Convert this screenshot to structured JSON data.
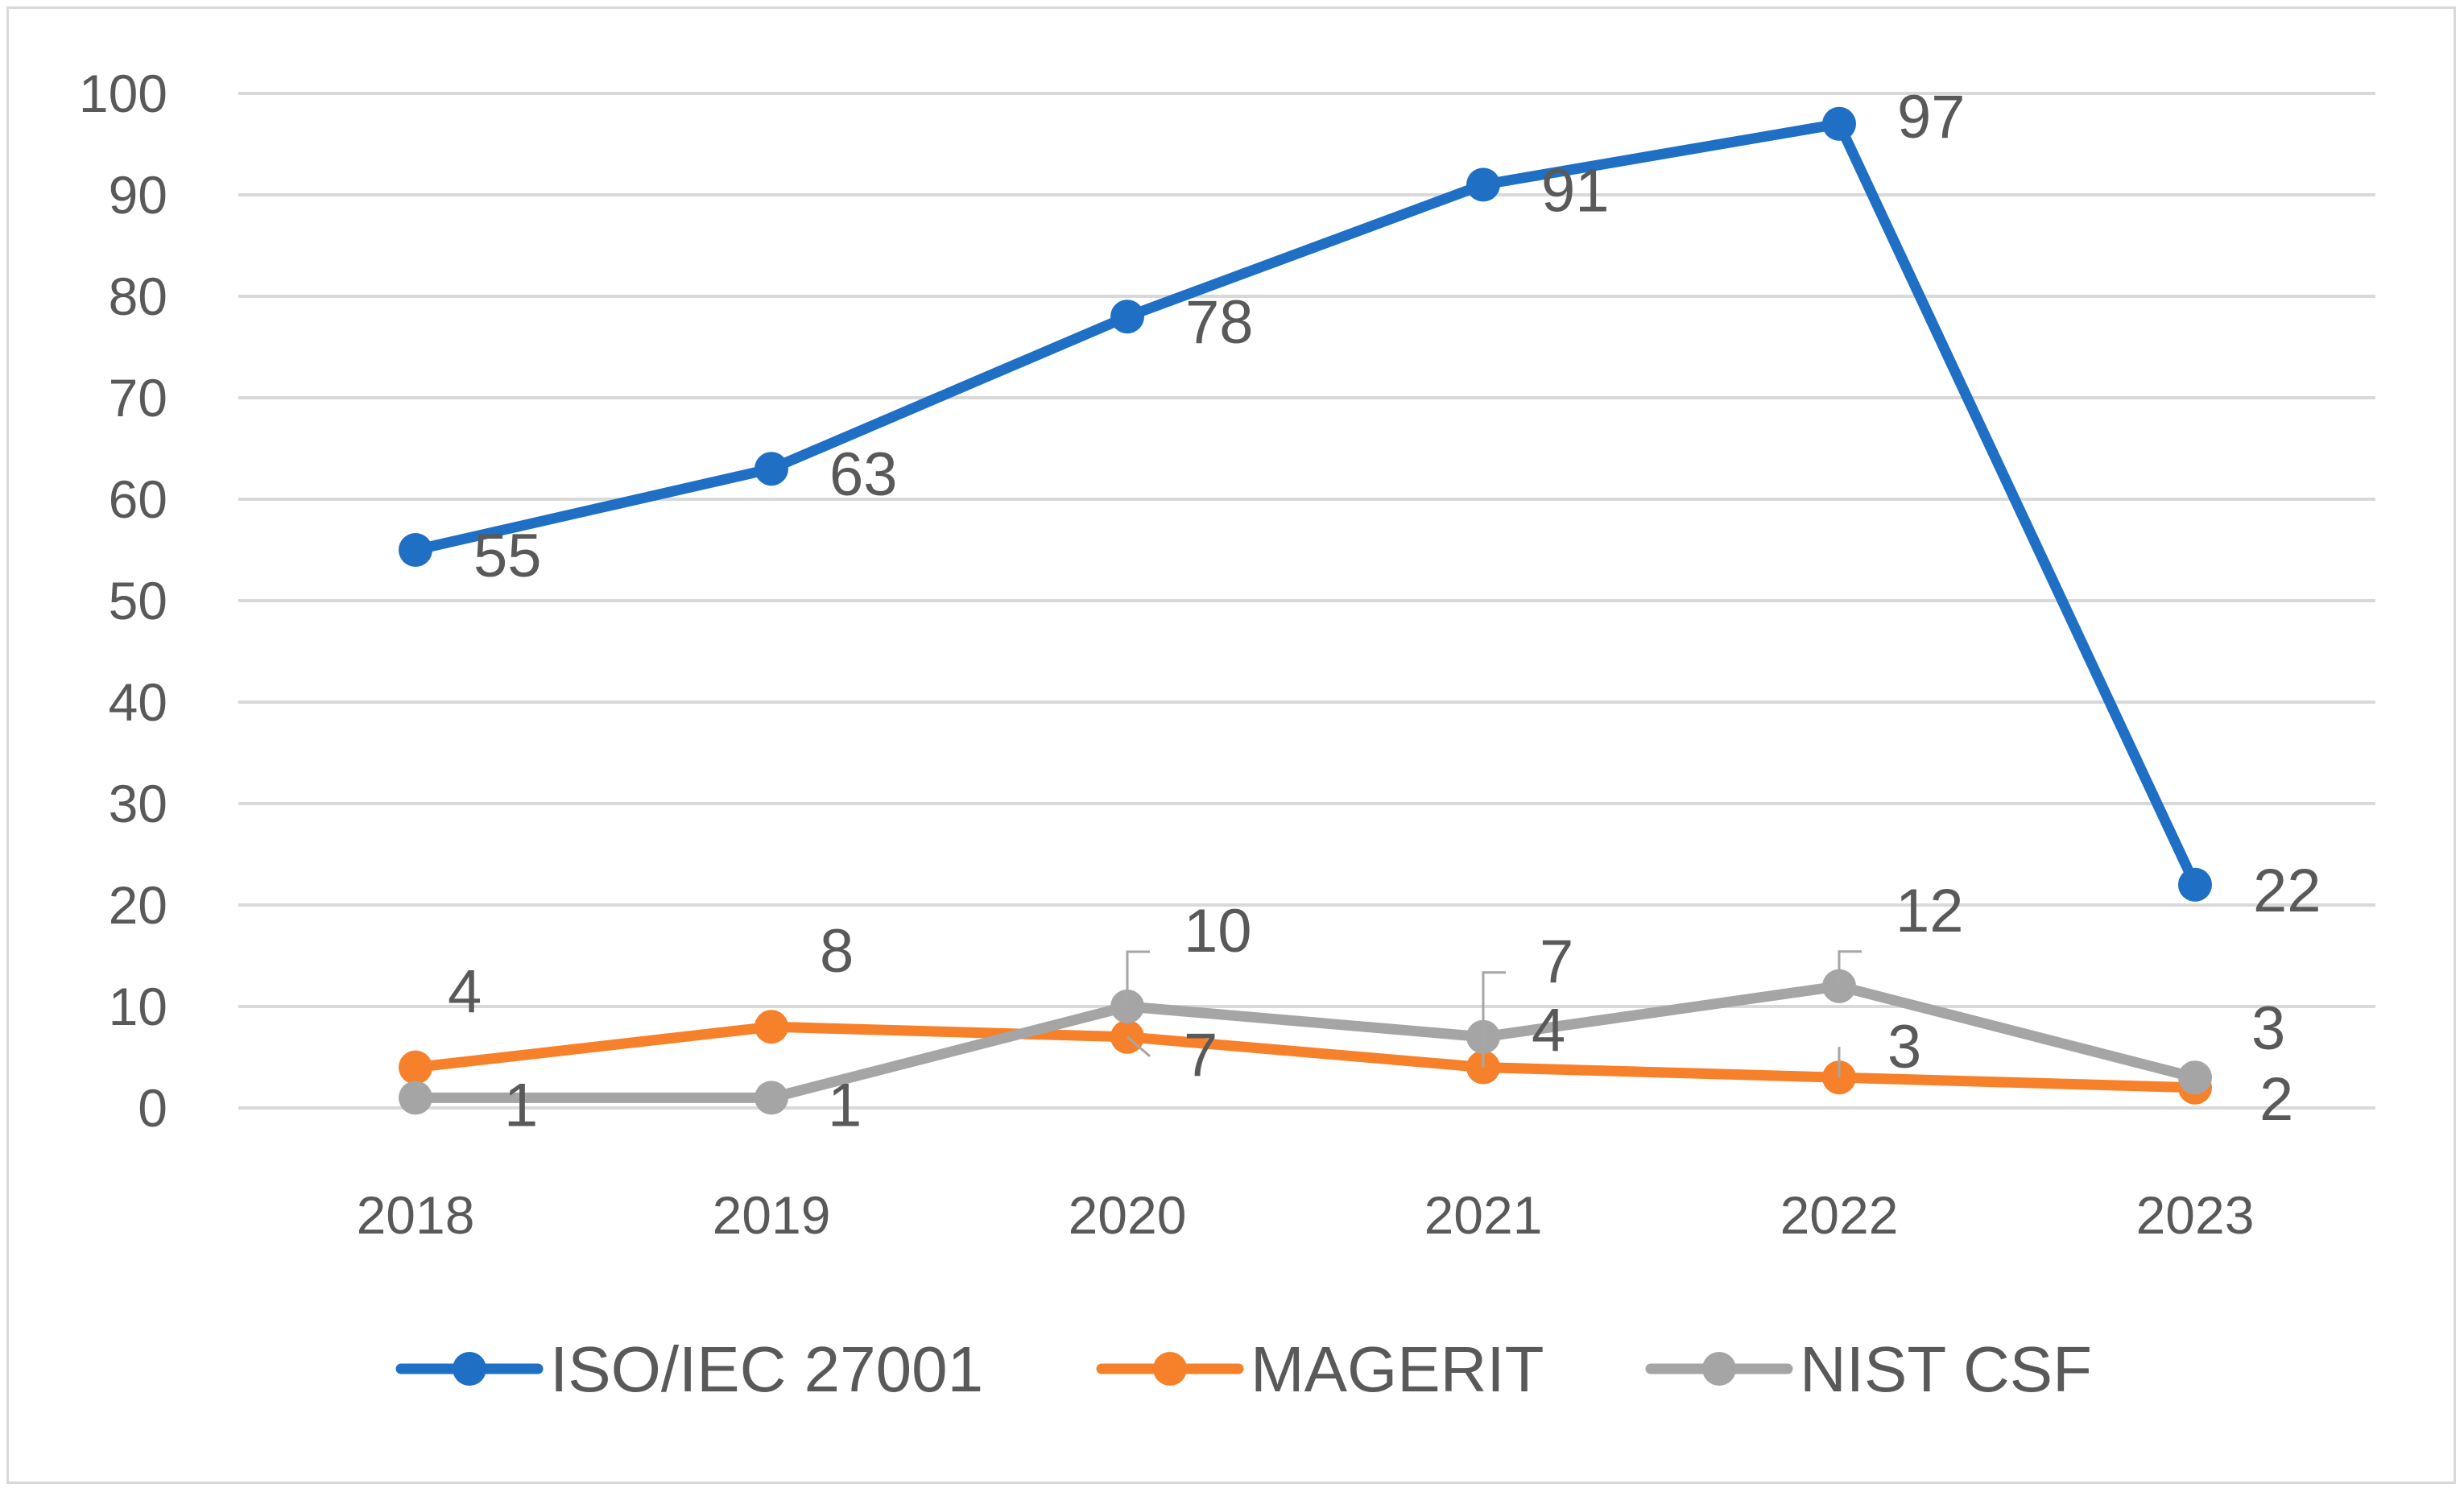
{
  "chart_data": {
    "type": "line",
    "title": "",
    "xlabel": "",
    "ylabel": "",
    "categories": [
      "2018",
      "2019",
      "2020",
      "2021",
      "2022",
      "2023"
    ],
    "ylim": [
      0,
      100
    ],
    "yticks": [
      0,
      10,
      20,
      30,
      40,
      50,
      60,
      70,
      80,
      90,
      100
    ],
    "grid": true,
    "legend_position": "bottom",
    "series": [
      {
        "name": "ISO/IEC 27001",
        "color": "#1f6fc5",
        "values": [
          55,
          63,
          78,
          91,
          97,
          22
        ]
      },
      {
        "name": "MAGERIT",
        "color": "#f7812a",
        "values": [
          4,
          8,
          7,
          4,
          3,
          2
        ]
      },
      {
        "name": "NIST CSF",
        "color": "#a5a5a5",
        "values": [
          1,
          1,
          10,
          7,
          12,
          3
        ]
      }
    ]
  }
}
